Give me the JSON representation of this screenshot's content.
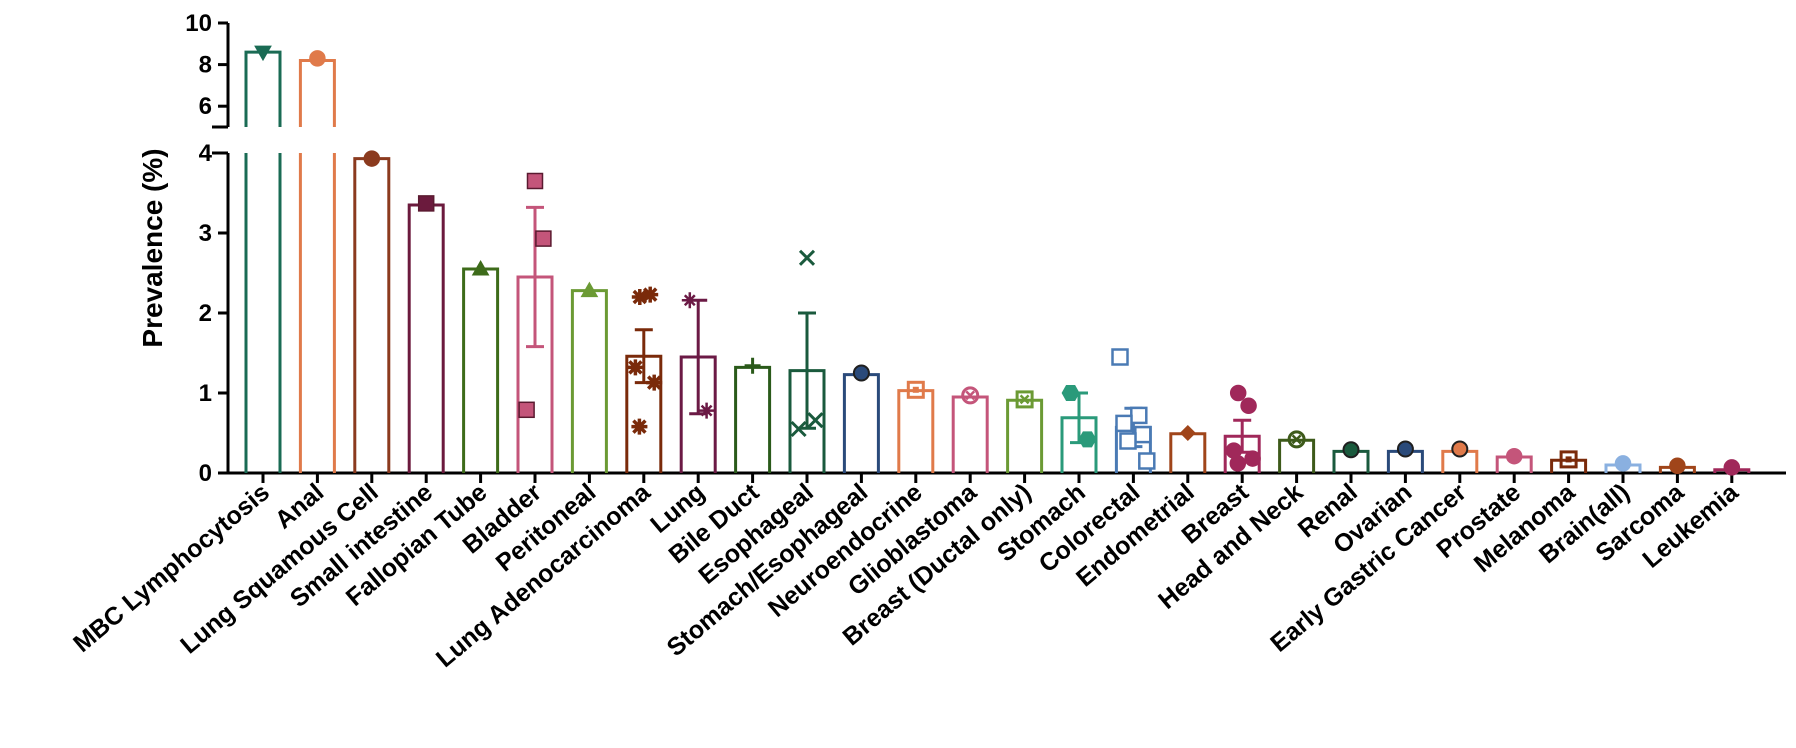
{
  "chart_data": {
    "type": "bar",
    "title": "",
    "xlabel": "",
    "ylabel": "Prevalence (%)",
    "y_axis": {
      "segments": [
        {
          "range": [
            0,
            4
          ],
          "ticks": [
            0,
            1,
            2,
            3,
            4
          ]
        },
        {
          "range": [
            5,
            10
          ],
          "ticks": [
            6,
            8,
            10
          ]
        }
      ],
      "break_between": [
        4,
        5
      ]
    },
    "categories": [
      {
        "name": "MBC Lymphocytosis",
        "value": 8.6,
        "color": "#1a6b54",
        "marker": "triangle-down",
        "points": [
          8.6
        ]
      },
      {
        "name": "Anal",
        "value": 8.2,
        "color": "#e07a4a",
        "marker": "circle",
        "points": [
          8.3
        ]
      },
      {
        "name": "Lung Squamous Cell",
        "value": 3.93,
        "color": "#8b3a1e",
        "marker": "circle",
        "points": [
          3.93
        ]
      },
      {
        "name": "Small intestine",
        "value": 3.35,
        "color": "#6b1a3d",
        "marker": "square",
        "points": [
          3.37
        ]
      },
      {
        "name": "Fallopian Tube",
        "value": 2.55,
        "color": "#3d6b1a",
        "marker": "triangle",
        "points": [
          2.55
        ]
      },
      {
        "name": "Bladder",
        "value": 2.45,
        "color": "#c4557a",
        "marker": "square",
        "err": 0.87,
        "points": [
          3.65,
          2.93,
          0.79
        ]
      },
      {
        "name": "Peritoneal",
        "value": 2.28,
        "color": "#6b9a34",
        "marker": "triangle",
        "points": [
          2.28
        ]
      },
      {
        "name": "Lung Adenocarcinoma",
        "value": 1.46,
        "color": "#7a2a0a",
        "marker": "asterisk",
        "err": 0.33,
        "points": [
          2.2,
          2.23,
          1.32,
          1.13,
          0.58
        ]
      },
      {
        "name": "Lung",
        "value": 1.45,
        "color": "#6b1a45",
        "marker": "star",
        "err": 0.71,
        "points": [
          2.16,
          0.78
        ]
      },
      {
        "name": "Bile Duct",
        "value": 1.32,
        "color": "#2a5a1a",
        "marker": "plus",
        "points": [
          1.34
        ]
      },
      {
        "name": "Esophageal",
        "value": 1.28,
        "color": "#1a5a3d",
        "marker": "x",
        "err": 0.72,
        "points": [
          2.69,
          0.66,
          0.55
        ]
      },
      {
        "name": "Stomach/Esophageal",
        "value": 1.23,
        "color": "#2a4a7a",
        "marker": "circle-dot",
        "points": [
          1.25
        ]
      },
      {
        "name": "Neuroendocrine",
        "value": 1.03,
        "color": "#e07a4a",
        "marker": "square-dot",
        "points": [
          1.04
        ]
      },
      {
        "name": "Glioblastoma",
        "value": 0.95,
        "color": "#c4557a",
        "marker": "circle-cross",
        "points": [
          0.97
        ]
      },
      {
        "name": "Breast (Ductal only)",
        "value": 0.91,
        "color": "#6b9a34",
        "marker": "square-cross",
        "points": [
          0.92
        ]
      },
      {
        "name": "Stomach",
        "value": 0.69,
        "color": "#2a9a7a",
        "marker": "hexagon",
        "err": 0.31,
        "points": [
          1.0,
          0.42
        ]
      },
      {
        "name": "Colorectal",
        "value": 0.57,
        "color": "#4a7ab4",
        "marker": "open-square",
        "err": 0.24,
        "points": [
          1.45,
          0.72,
          0.62,
          0.48,
          0.4,
          0.15
        ]
      },
      {
        "name": "Endometrial",
        "value": 0.49,
        "color": "#a0451a",
        "marker": "diamond",
        "points": [
          0.5
        ]
      },
      {
        "name": "Breast",
        "value": 0.46,
        "color": "#a0285a",
        "marker": "circle",
        "err": 0.2,
        "points": [
          1.0,
          0.84,
          0.28,
          0.18,
          0.12
        ]
      },
      {
        "name": "Head and Neck",
        "value": 0.41,
        "color": "#3d5a1a",
        "marker": "circle-cross",
        "points": [
          0.42
        ]
      },
      {
        "name": "Renal",
        "value": 0.27,
        "color": "#1a5a3d",
        "marker": "circle-dot",
        "points": [
          0.29
        ]
      },
      {
        "name": "Ovarian",
        "value": 0.27,
        "color": "#2a4a7a",
        "marker": "circle-dot",
        "points": [
          0.3
        ]
      },
      {
        "name": "Early Gastric Cancer",
        "value": 0.27,
        "color": "#e07a4a",
        "marker": "circle-dot",
        "points": [
          0.3
        ]
      },
      {
        "name": "Prostate",
        "value": 0.2,
        "color": "#c4557a",
        "marker": "circle",
        "points": [
          0.21
        ]
      },
      {
        "name": "Melanoma",
        "value": 0.16,
        "color": "#7a2a0a",
        "marker": "square-dot",
        "points": [
          0.17
        ]
      },
      {
        "name": "Brain(all)",
        "value": 0.1,
        "color": "#8ab0e0",
        "marker": "circle",
        "points": [
          0.12
        ]
      },
      {
        "name": "Sarcoma",
        "value": 0.07,
        "color": "#a0451a",
        "marker": "circle",
        "points": [
          0.09
        ]
      },
      {
        "name": "Leukemia",
        "value": 0.04,
        "color": "#a0285a",
        "marker": "circle",
        "points": [
          0.07
        ]
      }
    ]
  }
}
